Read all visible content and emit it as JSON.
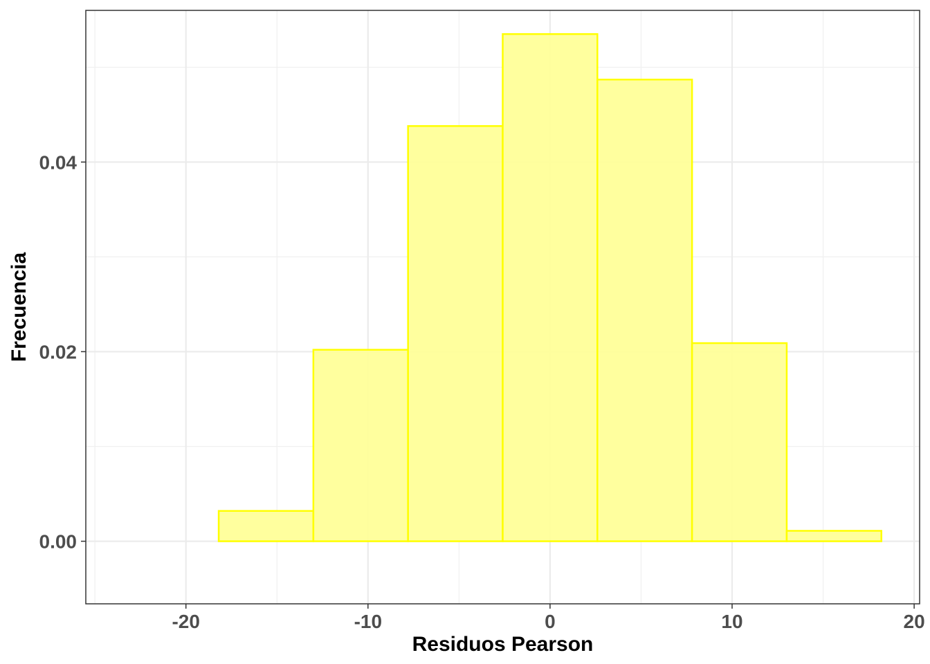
{
  "chart_data": {
    "type": "bar",
    "subtype": "histogram",
    "title": "",
    "xlabel": "Residuos Pearson",
    "ylabel": "Frecuencia",
    "xlim": [
      -25.5,
      20.3
    ],
    "ylim": [
      -0.0066,
      0.056
    ],
    "x_ticks": [
      -20,
      -10,
      0,
      10,
      20
    ],
    "x_tick_labels": [
      "-20",
      "-10",
      "0",
      "10",
      "20"
    ],
    "y_ticks": [
      0.0,
      0.02,
      0.04
    ],
    "y_tick_labels": [
      "0.00",
      "0.02",
      "0.04"
    ],
    "x_minor_ticks": [
      -25,
      -15,
      -5,
      5,
      15
    ],
    "y_minor_ticks": [
      0.01,
      0.03,
      0.05
    ],
    "grid": true,
    "legend": "none",
    "fill_color": "#ffff99",
    "edge_color": "#ffff00",
    "bins": [
      {
        "x0": -23.4,
        "x1": -18.2,
        "value": 0.0
      },
      {
        "x0": -18.2,
        "x1": -13.0,
        "value": 0.0032
      },
      {
        "x0": -13.0,
        "x1": -7.8,
        "value": 0.0202
      },
      {
        "x0": -7.8,
        "x1": -2.6,
        "value": 0.0438
      },
      {
        "x0": -2.6,
        "x1": 2.6,
        "value": 0.0535
      },
      {
        "x0": 2.6,
        "x1": 7.8,
        "value": 0.0487
      },
      {
        "x0": 7.8,
        "x1": 13.0,
        "value": 0.0209
      },
      {
        "x0": 13.0,
        "x1": 18.2,
        "value": 0.0011
      }
    ]
  }
}
